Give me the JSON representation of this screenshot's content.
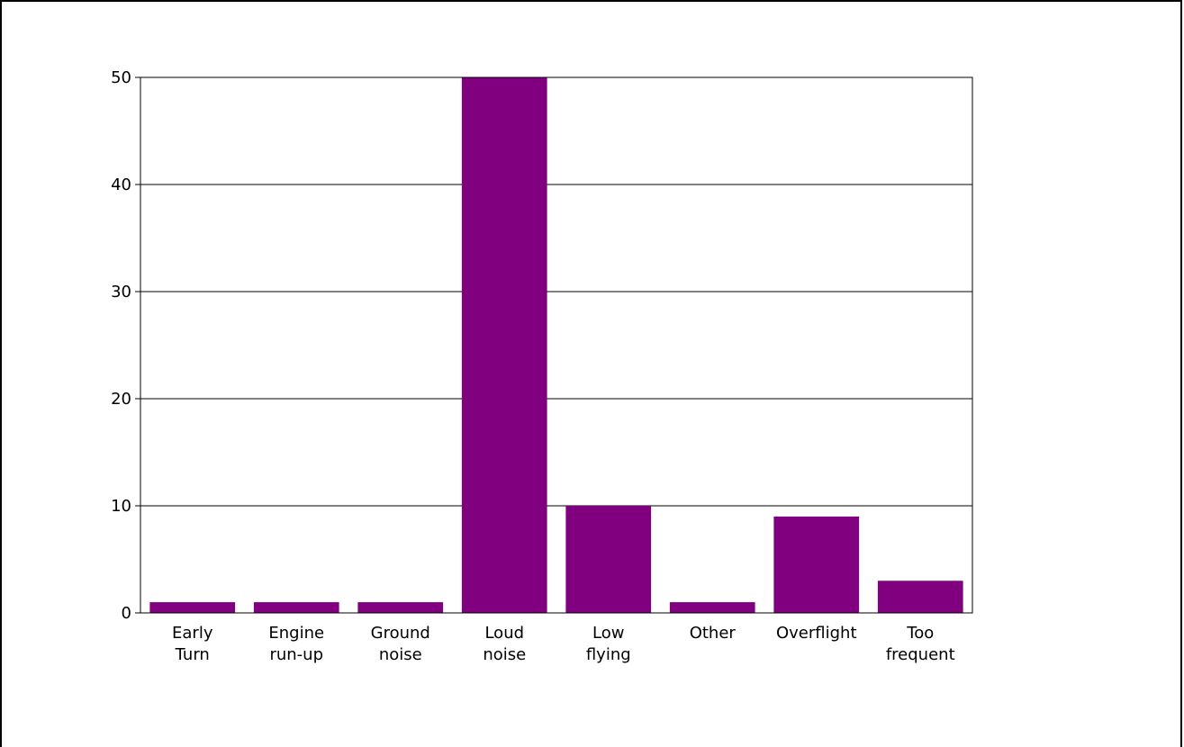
{
  "chart_data": {
    "type": "bar",
    "categories": [
      [
        "Early",
        "Turn"
      ],
      [
        "Engine",
        "run-up"
      ],
      [
        "Ground",
        "noise"
      ],
      [
        "Loud",
        "noise"
      ],
      [
        "Low",
        "flying"
      ],
      [
        "Other"
      ],
      [
        "Overflight"
      ],
      [
        "Too",
        "frequent"
      ]
    ],
    "values": [
      1,
      1,
      1,
      50,
      10,
      1,
      9,
      3
    ],
    "ylim": [
      0,
      50
    ],
    "yticks": [
      0,
      10,
      20,
      30,
      40,
      50
    ],
    "grid": true,
    "legend": "none",
    "bar_color": "#800080"
  }
}
